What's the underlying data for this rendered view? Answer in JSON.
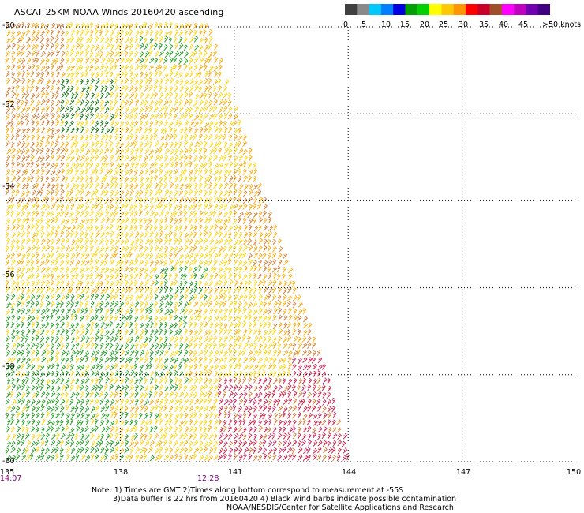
{
  "title": "ASCAT 25KM NOAA Winds 20160420 ascending",
  "colorbar": {
    "colors": [
      "#404040",
      "#8a8a8a",
      "#00c8ff",
      "#0080ff",
      "#0000e0",
      "#00a000",
      "#00d000",
      "#ffff00",
      "#ffc800",
      "#ff9600",
      "#ff0000",
      "#c80028",
      "#a05028",
      "#ff00ff",
      "#c000c0",
      "#7000b0",
      "#400080"
    ],
    "labels": [
      "0",
      "5",
      "10",
      "15",
      "20",
      "25",
      "30",
      "35",
      "40",
      "45",
      ">50 knots"
    ]
  },
  "axes": {
    "lat_labels": [
      "-50",
      "-52",
      "-54",
      "-56",
      "-58",
      "-60"
    ],
    "lon_labels": [
      "135",
      "138",
      "141",
      "144",
      "147",
      "150"
    ],
    "time_labels": [
      "14:07",
      "12:28"
    ]
  },
  "notes": [
    "Note: 1) Times are GMT 2)Times along bottom correspond to measurement at -55S",
    "3)Data buffer is 22 hrs from 20160420 4) Black wind barbs indicate possible contamination",
    "NOAA/NESDIS/Center for Satellite Applications and Research"
  ],
  "map_data": {
    "lon_range": [
      135,
      150
    ],
    "lat_range": [
      -60,
      -50
    ],
    "grid": "dotted",
    "swath_east_edge": [
      [
        -50,
        140.3
      ],
      [
        -52,
        141.0
      ],
      [
        -54,
        141.8
      ],
      [
        -56,
        142.6
      ],
      [
        -58,
        143.4
      ],
      [
        -60,
        144.0
      ]
    ],
    "wind_speed_regions": [
      {
        "speed": "20-25",
        "color": "#ffc800",
        "area": "northern and central swath"
      },
      {
        "speed": "25-30",
        "color": "#e08a28",
        "area": "western edge -51 to -54, eastern edge -54 to -58"
      },
      {
        "speed": "15-20",
        "color": "#00a000",
        "area": "west -56 to -60, patches -51 and -55"
      },
      {
        "speed": "30-40",
        "color": "#c80028",
        "area": "south-east -58 to -60"
      }
    ]
  }
}
